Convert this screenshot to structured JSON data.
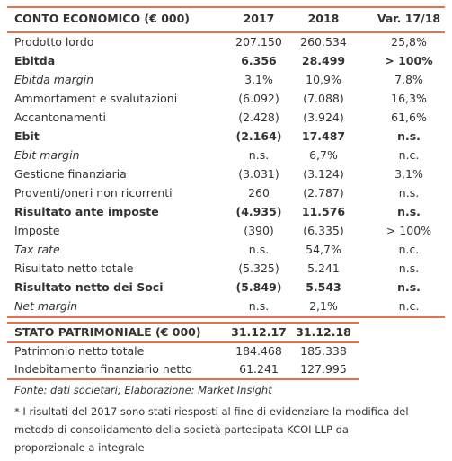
{
  "income_statement": {
    "header": [
      "CONTO ECONOMICO (€ 000)",
      "2017",
      "2018",
      "Var. 17/18"
    ],
    "rows": [
      [
        "Prodotto lordo",
        "207.150",
        "260.534",
        "25,8%"
      ],
      [
        "Ebitda",
        "6.356",
        "28.499",
        "> 100%"
      ],
      [
        "Ebitda margin",
        "3,1%",
        "10,9%",
        "7,8%"
      ],
      [
        "Ammortament e svalutazioni",
        "(6.092)",
        "(7.088)",
        "16,3%"
      ],
      [
        "Accantonamenti",
        "(2.428)",
        "(3.924)",
        "61,6%"
      ],
      [
        "Ebit",
        "(2.164)",
        "17.487",
        "n.s."
      ],
      [
        "Ebit margin",
        "n.s.",
        "6,7%",
        "n.c."
      ],
      [
        "Gestione finanziaria",
        "(3.031)",
        "(3.124)",
        "3,1%"
      ],
      [
        "Proventi/oneri non ricorrenti",
        "260",
        "(2.787)",
        "n.s."
      ],
      [
        "Risultato ante imposte",
        "(4.935)",
        "11.576",
        "n.s."
      ],
      [
        "Imposte",
        "(390)",
        "(6.335)",
        "> 100%"
      ],
      [
        "Tax rate",
        "n.s.",
        "54,7%",
        "n.c."
      ],
      [
        "Risultato netto totale",
        "(5.325)",
        "5.241",
        "n.s."
      ],
      [
        "Risultato netto dei Soci",
        "(5.849)",
        "5.543",
        "n.s."
      ],
      [
        "Net margin",
        "n.s.",
        "2,1%",
        "n.c."
      ]
    ]
  },
  "balance_sheet": {
    "header": [
      "STATO PATRIMONIALE (€ 000)",
      "31.12.17",
      "31.12.18"
    ],
    "rows": [
      [
        "Patrimonio netto totale",
        "184.468",
        "185.338"
      ],
      [
        "Indebitamento finanziario netto",
        "61.241",
        "127.995"
      ]
    ]
  },
  "source": "Fonte: dati societari; Elaborazione: Market Insight",
  "footnote": [
    "* I risultati del 2017 sono stati riesposti al fine di evidenziare la modifica del",
    "metodo di consolidamento della società partecipata KCOI LLP da",
    "proporzionale a integrale"
  ]
}
